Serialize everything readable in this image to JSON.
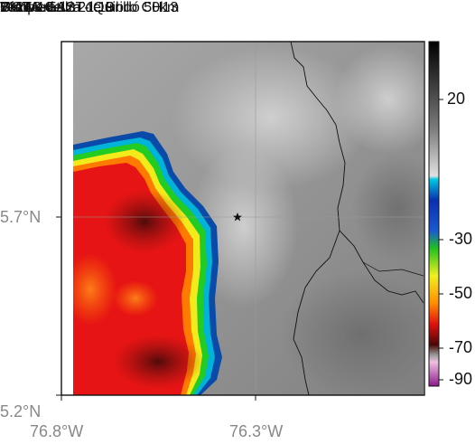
{
  "header": {
    "satellite": "GOES-EAST",
    "product": "Temperatura de Brillo CH13",
    "region": "Vía Medellín - Quibdó 50km",
    "source": "SIATA",
    "datetime": "2024-10-12 21:19"
  },
  "axes": {
    "lat_ticks": [
      {
        "value": 5.7,
        "label": "5.7°N"
      },
      {
        "value": 5.2,
        "label": "5.2°N"
      }
    ],
    "lon_ticks": [
      {
        "value": -76.8,
        "label": "76.8°W"
      },
      {
        "value": -76.3,
        "label": "76.3°W"
      }
    ]
  },
  "colorbar": {
    "ticks": [
      "20",
      "-30",
      "-50",
      "-70",
      "-90"
    ]
  },
  "map": {
    "marker": "star-icon",
    "colors": {
      "cloud_free_light": "#e6e6e6",
      "cloud_free_dark": "#7a7a7a",
      "edge_blue": "#0a4aa8",
      "cyan": "#00b4d8",
      "green": "#22cc22",
      "yellow": "#f2ea1a",
      "orange": "#ff7a00",
      "red": "#e61414",
      "dark_red": "#5a0f0f",
      "magenta": "#c040b0"
    }
  }
}
